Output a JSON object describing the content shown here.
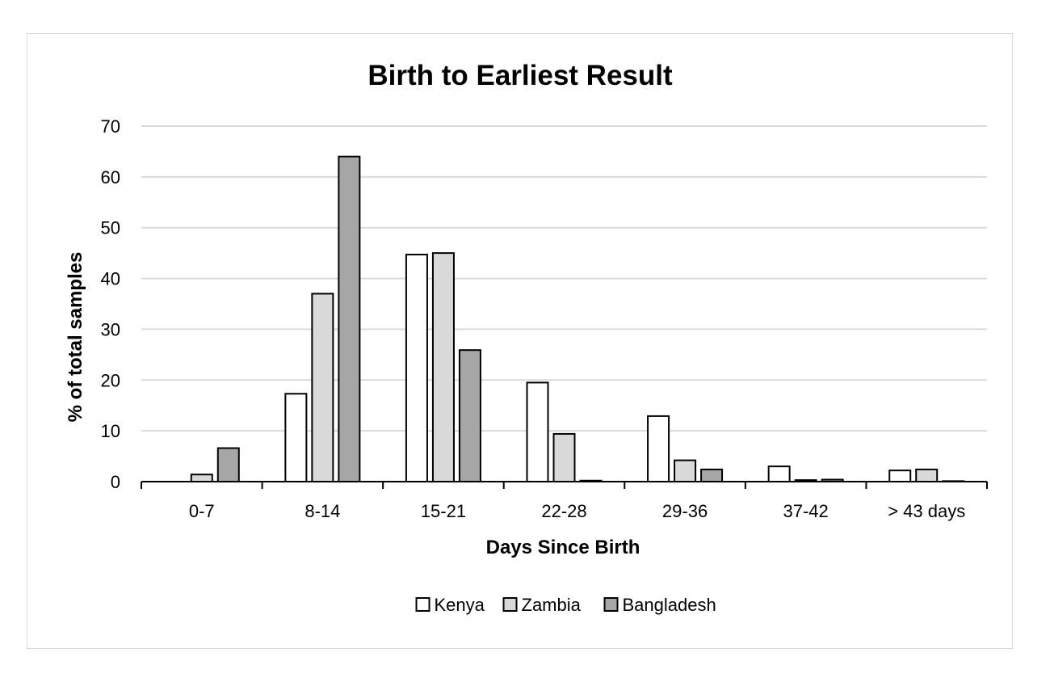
{
  "chart_data": {
    "type": "bar",
    "title": "Birth to Earliest Result",
    "xlabel": "Days Since Birth",
    "ylabel": "% of total samples",
    "categories": [
      "0-7",
      "8-14",
      "15-21",
      "22-28",
      "29-36",
      "37-42",
      "> 43 days"
    ],
    "ylim": [
      0,
      70
    ],
    "yticks": [
      0,
      10,
      20,
      30,
      40,
      50,
      60,
      70
    ],
    "grid": true,
    "legend_position": "bottom",
    "series": [
      {
        "name": "Kenya",
        "color": "#ffffff",
        "values": [
          0,
          17.3,
          44.7,
          19.5,
          12.9,
          3.0,
          2.2
        ]
      },
      {
        "name": "Zambia",
        "color": "#d9d9d9",
        "values": [
          1.4,
          37.0,
          45.0,
          9.4,
          4.2,
          0.3,
          2.4
        ]
      },
      {
        "name": "Bangladesh",
        "color": "#a6a6a6",
        "values": [
          6.6,
          64.0,
          25.9,
          0.2,
          2.4,
          0.4,
          0.1
        ]
      }
    ]
  }
}
